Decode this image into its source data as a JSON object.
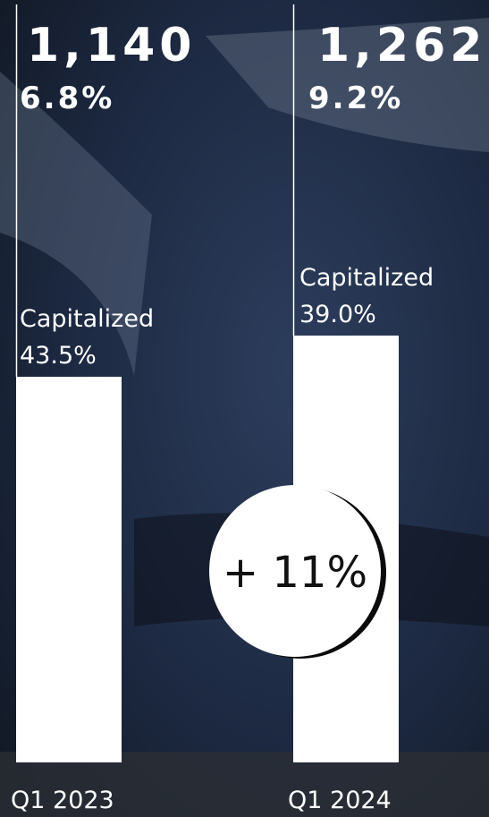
{
  "chart_data": {
    "type": "bar",
    "categories": [
      "Q1 2023",
      "Q1 2024"
    ],
    "values": [
      1140,
      1262
    ],
    "value_labels": [
      "1,140",
      "1,262"
    ],
    "color": "#ffffff",
    "ratio_values": [
      6.8,
      9.2
    ],
    "ratio_labels": [
      "6.8%",
      "9.2%"
    ],
    "capitalized_label": "Capitalized",
    "capitalized_values": [
      43.5,
      39.0
    ],
    "capitalized_labels": [
      "43.5%",
      "39.0%"
    ],
    "change": 11,
    "change_label": "+ 11%"
  }
}
